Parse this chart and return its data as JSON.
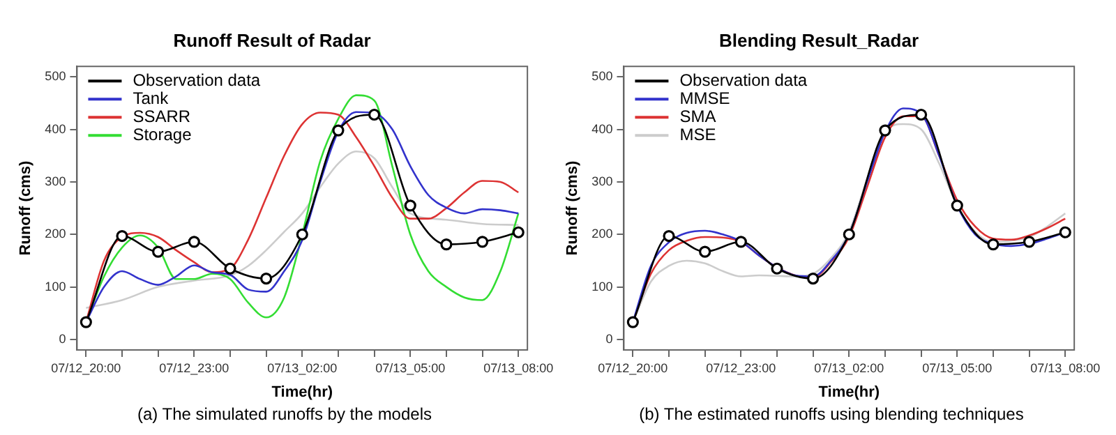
{
  "chart_data": [
    {
      "type": "line",
      "title": "Runoff Result of Radar",
      "xlabel": "Time(hr)",
      "ylabel": "Runoff (cms)",
      "annotations": [
        "(a) The simulated runoffs by the models"
      ],
      "legend": "top left",
      "grid": false,
      "ylim": [
        -20,
        520
      ],
      "yticks": [
        0,
        100,
        200,
        300,
        400,
        500
      ],
      "categories": [
        "07/12_20:00",
        null,
        null,
        null,
        null,
        null,
        "07/12_23:00",
        null,
        null,
        null,
        null,
        null,
        "07/13_02:00",
        null,
        null,
        null,
        null,
        null,
        "07/13_05:00",
        null,
        null,
        null,
        null,
        null,
        "07/13_08:00"
      ],
      "series": [
        {
          "name": "Observation data",
          "color": "#000000",
          "marker": "circle",
          "values": [
            33,
            null,
            197,
            null,
            167,
            null,
            186,
            null,
            135,
            null,
            116,
            null,
            200,
            null,
            398,
            null,
            428,
            null,
            255,
            null,
            181,
            null,
            186,
            null,
            204
          ]
        },
        {
          "name": "Tank",
          "color": "#3333cc",
          "marker": "none",
          "values": [
            33,
            100,
            130,
            115,
            104,
            120,
            141,
            128,
            123,
            95,
            91,
            130,
            189,
            300,
            396,
            433,
            431,
            400,
            330,
            275,
            251,
            240,
            248,
            246,
            240
          ]
        },
        {
          "name": "SSARR",
          "color": "#dd3333",
          "marker": "none",
          "values": [
            33,
            150,
            195,
            203,
            195,
            170,
            147,
            128,
            135,
            190,
            270,
            350,
            410,
            432,
            428,
            385,
            330,
            270,
            230,
            230,
            250,
            280,
            302,
            300,
            280
          ]
        },
        {
          "name": "Storage",
          "color": "#33dd33",
          "marker": "none",
          "values": [
            33,
            120,
            175,
            198,
            175,
            115,
            115,
            125,
            115,
            70,
            42,
            80,
            200,
            340,
            420,
            465,
            455,
            330,
            200,
            130,
            100,
            80,
            75,
            130,
            240
          ]
        },
        {
          "color": "#cccccc",
          "marker": "none",
          "values": [
            60,
            null,
            75,
            null,
            100,
            null,
            112,
            null,
            122,
            140,
            170,
            205,
            240,
            290,
            335,
            358,
            345,
            290,
            240,
            null,
            228,
            null,
            220,
            null,
            218
          ]
        }
      ]
    },
    {
      "type": "line",
      "title": "Blending Result_Radar",
      "xlabel": "Time(hr)",
      "ylabel": "Runoff (cms)",
      "annotations": [
        "(b) The estimated runoffs using blending techniques"
      ],
      "legend": "top left",
      "grid": false,
      "ylim": [
        -20,
        520
      ],
      "yticks": [
        0,
        100,
        200,
        300,
        400,
        500
      ],
      "categories": [
        "07/12_20:00",
        null,
        null,
        null,
        null,
        null,
        "07/12_23:00",
        null,
        null,
        null,
        null,
        null,
        "07/13_02:00",
        null,
        null,
        null,
        null,
        null,
        "07/13_05:00",
        null,
        null,
        null,
        null,
        null,
        "07/13_08:00"
      ],
      "series": [
        {
          "name": "Observation data",
          "color": "#000000",
          "marker": "circle",
          "values": [
            33,
            null,
            197,
            null,
            167,
            null,
            186,
            null,
            135,
            null,
            116,
            null,
            200,
            null,
            398,
            null,
            428,
            null,
            255,
            null,
            181,
            null,
            186,
            null,
            204
          ]
        },
        {
          "name": "MMSE",
          "color": "#3333cc",
          "marker": "none",
          "values": [
            33,
            140,
            185,
            203,
            207,
            200,
            187,
            160,
            137,
            122,
            120,
            150,
            200,
            300,
            395,
            440,
            430,
            350,
            255,
            200,
            182,
            178,
            182,
            192,
            204
          ]
        },
        {
          "name": "SMA",
          "color": "#dd3333",
          "marker": "none",
          "values": [
            33,
            125,
            170,
            188,
            195,
            194,
            186,
            160,
            137,
            122,
            118,
            148,
            195,
            290,
            385,
            425,
            425,
            350,
            265,
            215,
            192,
            190,
            198,
            212,
            230
          ]
        },
        {
          "name": "MSE",
          "color": "#cccccc",
          "marker": "none",
          "values": [
            33,
            110,
            140,
            150,
            145,
            130,
            120,
            122,
            121,
            120,
            125,
            155,
            205,
            305,
            395,
            410,
            400,
            335,
            255,
            205,
            185,
            188,
            195,
            215,
            240
          ]
        }
      ]
    }
  ]
}
